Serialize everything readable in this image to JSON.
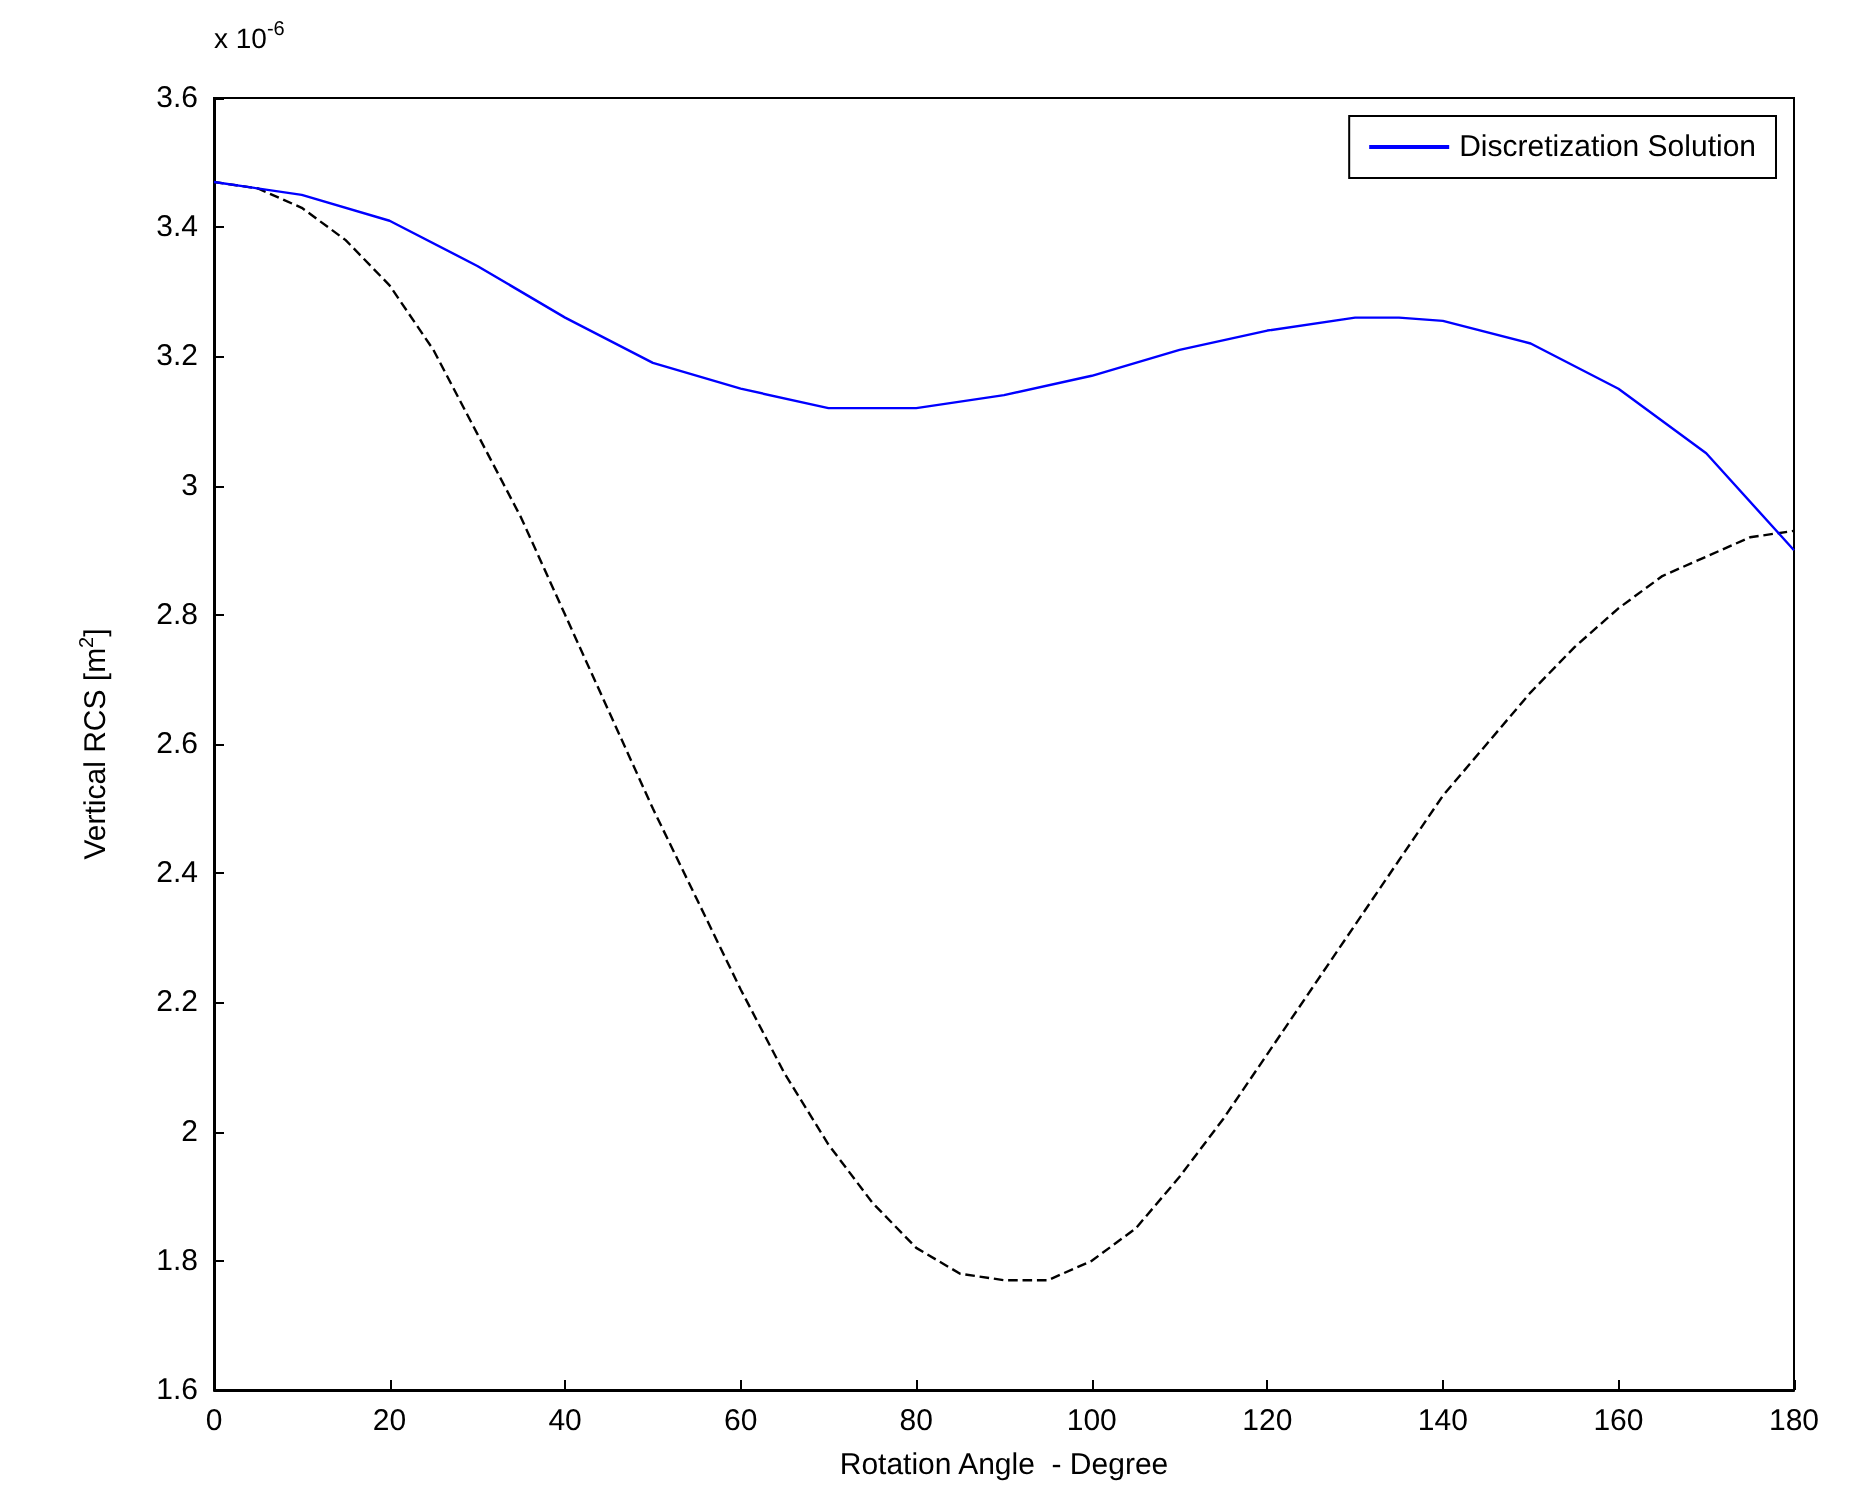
{
  "chart_data": {
    "type": "line",
    "xlabel": "Rotation Angle  - Degree",
    "ylabel": "Vertical RCS [m$^{2}$]",
    "annotations": [
      "x 10$^{-6}$"
    ],
    "xlim": [
      0,
      180
    ],
    "xticks": [
      0,
      20,
      40,
      60,
      80,
      100,
      120,
      140,
      160,
      180
    ],
    "ylim": [
      1.6,
      3.6
    ],
    "yticks": [
      1.6,
      1.8,
      2,
      2.2,
      2.4,
      2.6,
      2.8,
      3,
      3.2,
      3.4,
      3.6
    ],
    "grid": false,
    "legend": "top right",
    "marker": "none",
    "series": [
      {
        "color": "#000000",
        "line_style": "dashed",
        "x": [
          0,
          5,
          10,
          15,
          20,
          25,
          30,
          35,
          40,
          45,
          50,
          55,
          60,
          65,
          70,
          75,
          80,
          85,
          90,
          95,
          100,
          105,
          110,
          115,
          120,
          125,
          130,
          135,
          140,
          145,
          150,
          155,
          160,
          165,
          170,
          175,
          180
        ],
        "values": [
          3.47,
          3.46,
          3.43,
          3.38,
          3.31,
          3.21,
          3.08,
          2.95,
          2.8,
          2.65,
          2.5,
          2.36,
          2.22,
          2.09,
          1.98,
          1.89,
          1.82,
          1.78,
          1.77,
          1.77,
          1.8,
          1.85,
          1.93,
          2.02,
          2.12,
          2.22,
          2.32,
          2.42,
          2.52,
          2.6,
          2.68,
          2.75,
          2.81,
          2.86,
          2.89,
          2.92,
          2.93
        ]
      },
      {
        "name": "Discretization Solution",
        "color": "#0000ff",
        "line_style": "solid",
        "x": [
          0,
          10,
          20,
          30,
          40,
          50,
          60,
          70,
          75,
          80,
          90,
          100,
          110,
          120,
          130,
          135,
          140,
          150,
          160,
          170,
          180
        ],
        "values": [
          3.47,
          3.45,
          3.41,
          3.34,
          3.26,
          3.19,
          3.15,
          3.12,
          3.12,
          3.12,
          3.14,
          3.17,
          3.21,
          3.24,
          3.26,
          3.26,
          3.255,
          3.22,
          3.15,
          3.05,
          2.9
        ]
      }
    ]
  }
}
